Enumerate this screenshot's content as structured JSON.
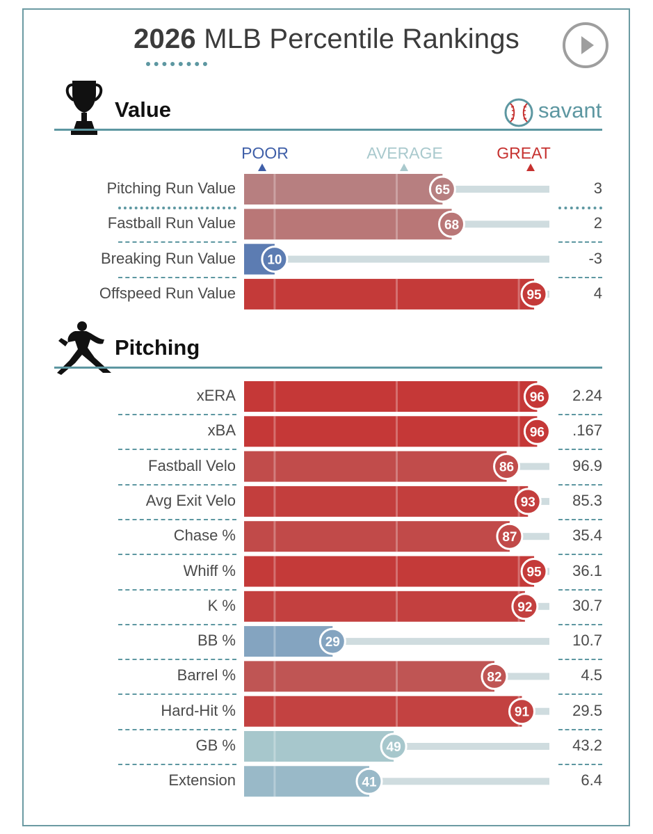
{
  "title": {
    "year": "2026",
    "rest": "MLB Percentile Rankings"
  },
  "brand": {
    "name": "savant"
  },
  "scale": {
    "poor": "POOR",
    "average": "AVERAGE",
    "great": "GREAT",
    "colors": {
      "poor": "#3f5fa8",
      "average": "#a9c9cd",
      "great": "#c6312f"
    }
  },
  "sections": [
    {
      "title": "Value",
      "icon": "trophy-icon"
    },
    {
      "title": "Pitching",
      "icon": "pitcher-icon"
    }
  ],
  "chart_data": {
    "type": "bar",
    "orientation": "horizontal",
    "xlim": [
      0,
      100
    ],
    "reference_lines": [
      10,
      50,
      90
    ],
    "groups": [
      {
        "name": "Value",
        "rows": [
          {
            "label": "Pitching Run Value",
            "percentile": 65,
            "value": "3",
            "highlight": true
          },
          {
            "label": "Fastball Run Value",
            "percentile": 68,
            "value": "2"
          },
          {
            "label": "Breaking Run Value",
            "percentile": 10,
            "value": "-3"
          },
          {
            "label": "Offspeed Run Value",
            "percentile": 95,
            "value": "4"
          }
        ]
      },
      {
        "name": "Pitching",
        "rows": [
          {
            "label": "xERA",
            "percentile": 96,
            "value": "2.24"
          },
          {
            "label": "xBA",
            "percentile": 96,
            "value": ".167"
          },
          {
            "label": "Fastball Velo",
            "percentile": 86,
            "value": "96.9"
          },
          {
            "label": "Avg Exit Velo",
            "percentile": 93,
            "value": "85.3"
          },
          {
            "label": "Chase %",
            "percentile": 87,
            "value": "35.4"
          },
          {
            "label": "Whiff %",
            "percentile": 95,
            "value": "36.1"
          },
          {
            "label": "K %",
            "percentile": 92,
            "value": "30.7"
          },
          {
            "label": "BB %",
            "percentile": 29,
            "value": "10.7"
          },
          {
            "label": "Barrel %",
            "percentile": 82,
            "value": "4.5"
          },
          {
            "label": "Hard-Hit %",
            "percentile": 91,
            "value": "29.5"
          },
          {
            "label": "GB %",
            "percentile": 49,
            "value": "43.2"
          },
          {
            "label": "Extension",
            "percentile": 41,
            "value": "6.4"
          }
        ]
      }
    ]
  }
}
